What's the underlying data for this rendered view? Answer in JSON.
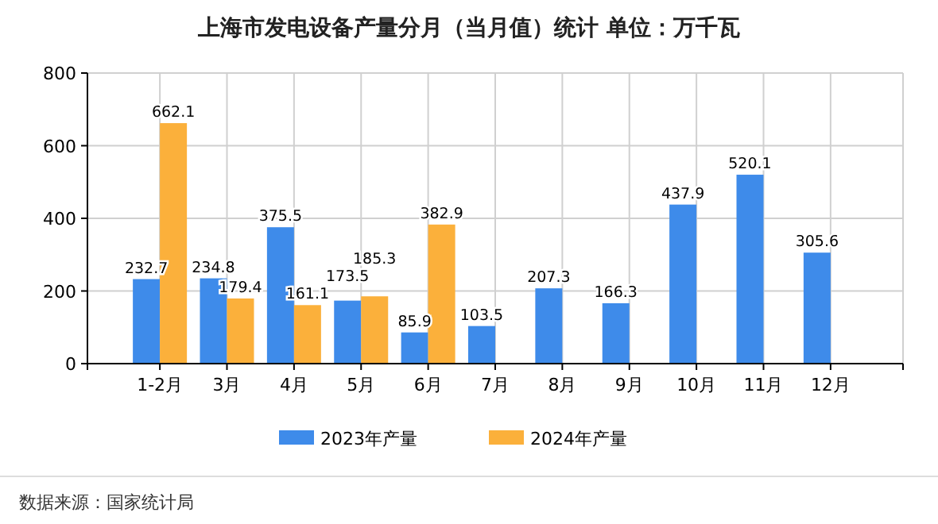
{
  "chart_data": {
    "type": "bar",
    "title": "上海市发电设备产量分月（当月值）统计 单位：万千瓦",
    "categories": [
      "1-2月",
      "3月",
      "4月",
      "5月",
      "6月",
      "7月",
      "8月",
      "9月",
      "10月",
      "11月",
      "12月"
    ],
    "series": [
      {
        "name": "2023年产量",
        "color": "#3e8bea",
        "values": [
          232.7,
          234.8,
          375.5,
          173.5,
          85.9,
          103.5,
          207.3,
          166.3,
          437.9,
          520.1,
          305.6
        ]
      },
      {
        "name": "2024年产量",
        "color": "#fbb03b",
        "values": [
          662.1,
          179.4,
          161.1,
          185.3,
          382.9,
          null,
          null,
          null,
          null,
          null,
          null
        ]
      }
    ],
    "ylim": [
      0,
      800
    ],
    "yticks": [
      0,
      200,
      400,
      600,
      800
    ],
    "grid": true,
    "legend": "bottom",
    "data_labels": true,
    "annotations": [
      "数据来源：国家统计局"
    ]
  }
}
